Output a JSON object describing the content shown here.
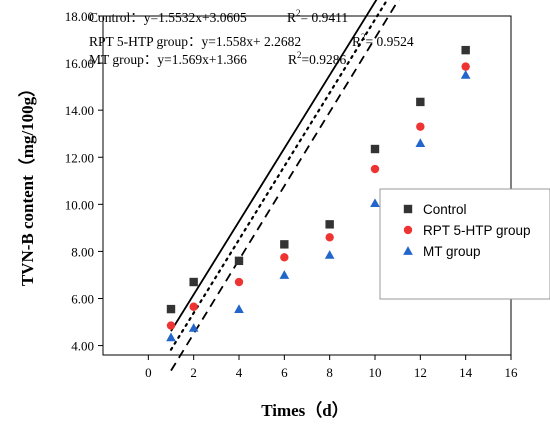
{
  "chart_data": {
    "type": "scatter",
    "xlabel": "Times（d）",
    "ylabel": "TVN-B content（mg/100g）",
    "xlim": [
      -2,
      16
    ],
    "ylim": [
      3.6,
      18
    ],
    "xticks": [
      "0",
      "2",
      "4",
      "6",
      "8",
      "10",
      "12",
      "14",
      "16"
    ],
    "yticks": [
      "4.00",
      "6.00",
      "8.00",
      "10.00",
      "12.00",
      "14.00",
      "16.00",
      "18.00"
    ],
    "grid": false,
    "legend_position": "right",
    "series": [
      {
        "name": "Control",
        "marker": "square",
        "color": "#333333",
        "line_style": "solid",
        "x": [
          1,
          2,
          4,
          6,
          8,
          10,
          12,
          14
        ],
        "y": [
          5.55,
          6.7,
          7.6,
          8.3,
          9.15,
          12.35,
          14.35,
          16.55
        ],
        "equation_text": "Control：y=1.5532x+3.0605",
        "r2_text": "R",
        "r2_sup": "2",
        "r2_value": "= 0.9411",
        "fit": {
          "slope": 1.5532,
          "intercept": 3.0605
        }
      },
      {
        "name": "RPT 5-HTP group",
        "marker": "circle",
        "color": "#ee3333",
        "line_style": "dotted",
        "x": [
          1,
          2,
          4,
          6,
          8,
          10,
          12,
          14
        ],
        "y": [
          4.85,
          5.65,
          6.7,
          7.75,
          8.6,
          11.5,
          13.3,
          15.85
        ],
        "equation_text": "RPT 5-HTP group：y=1.558x+ 2.2682",
        "r2_text": "R",
        "r2_sup": "2",
        "r2_value": "= 0.9524",
        "fit": {
          "slope": 1.558,
          "intercept": 2.2682
        }
      },
      {
        "name": "MT group",
        "marker": "triangle",
        "color": "#2266cc",
        "line_style": "dashed",
        "x": [
          1,
          2,
          4,
          6,
          8,
          10,
          12,
          14
        ],
        "y": [
          4.35,
          4.75,
          5.55,
          7.0,
          7.85,
          10.05,
          12.6,
          15.5
        ],
        "equation_text": "MT group：y=1.569x+1.366",
        "r2_text": "R",
        "r2_sup": "2",
        "r2_value": "=0.9286",
        "fit": {
          "slope": 1.569,
          "intercept": 1.366
        }
      }
    ]
  }
}
